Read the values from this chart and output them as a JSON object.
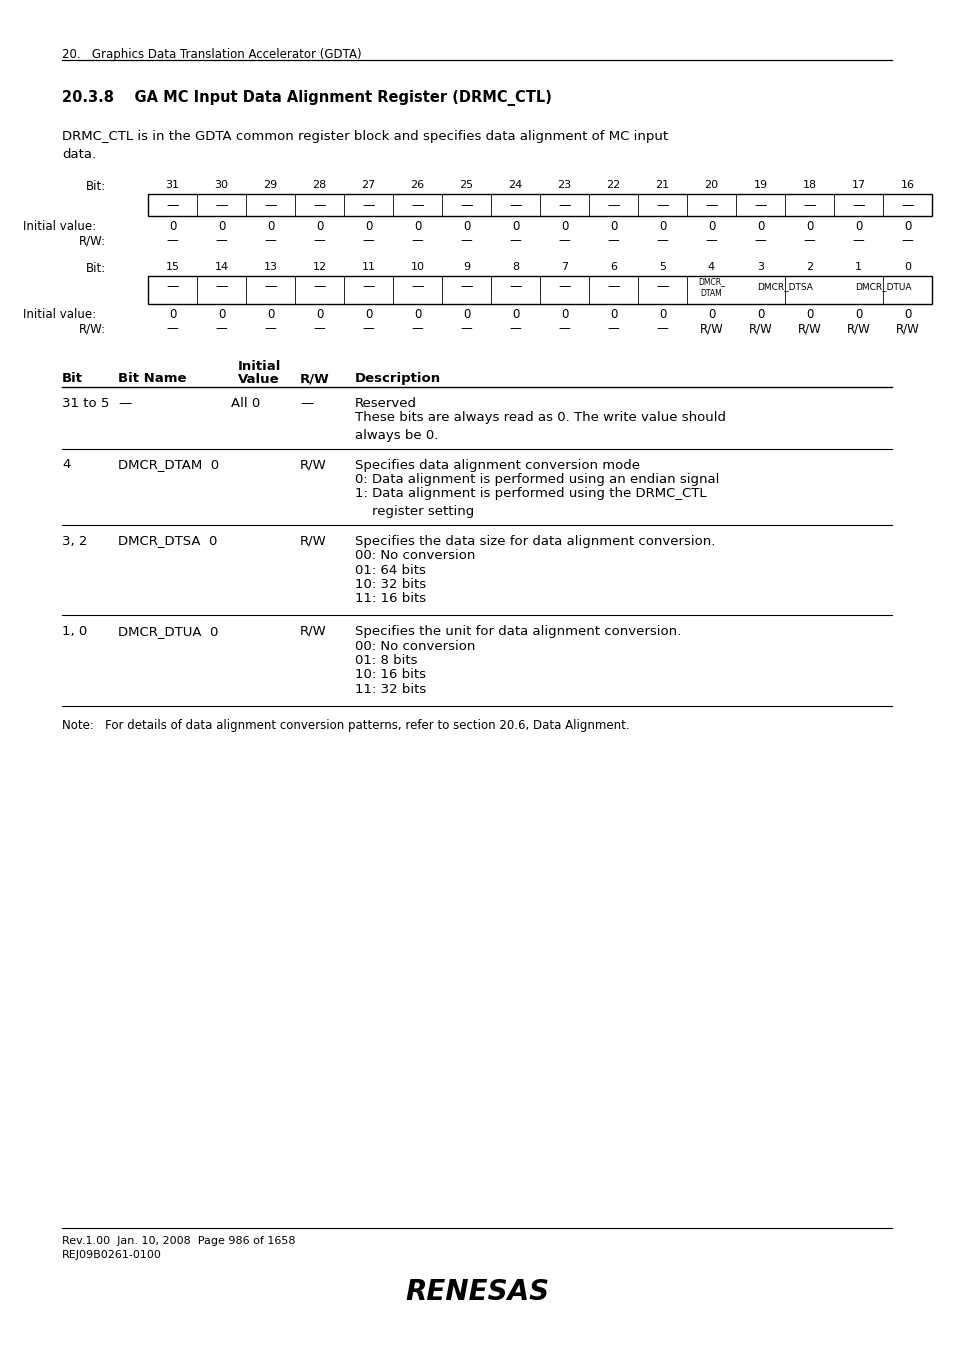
{
  "page_header": "20.   Graphics Data Translation Accelerator (GDTA)",
  "section_title": "20.3.8    GA MC Input Data Alignment Register (DRMC_CTL)",
  "description1": "DRMC_CTL is in the GDTA common register block and specifies data alignment of MC input",
  "description2": "data.",
  "reg_top_bits": [
    31,
    30,
    29,
    28,
    27,
    26,
    25,
    24,
    23,
    22,
    21,
    20,
    19,
    18,
    17,
    16
  ],
  "reg_top_init": [
    "0",
    "0",
    "0",
    "0",
    "0",
    "0",
    "0",
    "0",
    "0",
    "0",
    "0",
    "0",
    "0",
    "0",
    "0",
    "0"
  ],
  "reg_top_rw": [
    "—",
    "—",
    "—",
    "—",
    "—",
    "—",
    "—",
    "—",
    "—",
    "—",
    "—",
    "—",
    "—",
    "—",
    "—",
    "—"
  ],
  "reg_bot_bits": [
    15,
    14,
    13,
    12,
    11,
    10,
    9,
    8,
    7,
    6,
    5,
    4,
    3,
    2,
    1,
    0
  ],
  "reg_bot_init": [
    "0",
    "0",
    "0",
    "0",
    "0",
    "0",
    "0",
    "0",
    "0",
    "0",
    "0",
    "0",
    "0",
    "0",
    "0",
    "0"
  ],
  "reg_bot_rw": [
    "—",
    "—",
    "—",
    "—",
    "—",
    "—",
    "—",
    "—",
    "—",
    "—",
    "—",
    "R/W",
    "R/W",
    "R/W",
    "R/W",
    "R/W"
  ],
  "note": "Note:   For details of data alignment conversion patterns, refer to section 20.6, Data Alignment.",
  "footer_line1": "Rev.1.00  Jan. 10, 2008  Page 986 of 1658",
  "footer_line2": "REJ09B0261-0100",
  "bg_color": "#ffffff"
}
